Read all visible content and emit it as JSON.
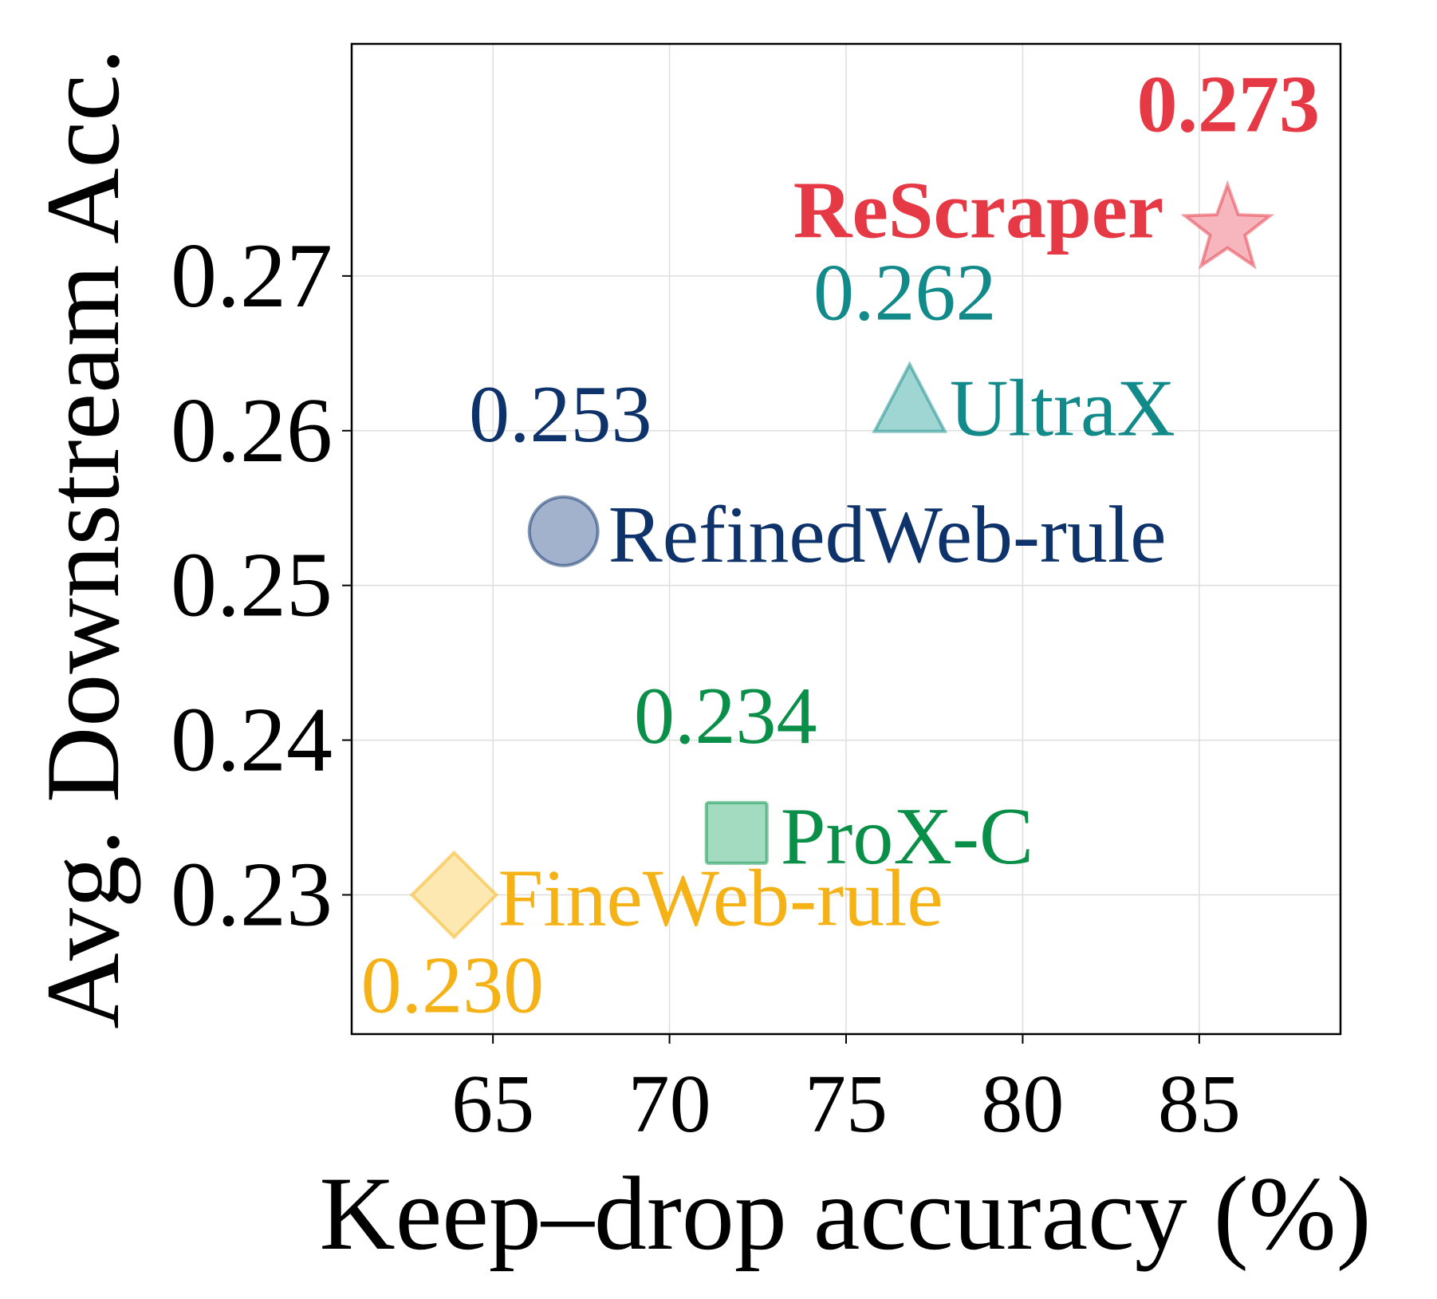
{
  "chart_data": {
    "type": "scatter",
    "title": "",
    "xlabel": "Keep–drop accuracy (%)",
    "ylabel": "Avg. Downstream Acc.",
    "xlim": [
      61.0,
      89.0
    ],
    "ylim": [
      0.221,
      0.285
    ],
    "xticks": [
      65,
      70,
      75,
      80,
      85
    ],
    "yticks": [
      0.23,
      0.24,
      0.25,
      0.26,
      0.27
    ],
    "xtick_labels": [
      "65",
      "70",
      "75",
      "80",
      "85"
    ],
    "ytick_labels": [
      "0.23",
      "0.24",
      "0.25",
      "0.26",
      "0.27"
    ],
    "grid": true,
    "points": [
      {
        "name": "ReScraper",
        "x": 85.8,
        "y": 0.273,
        "value_label": "0.273",
        "marker": "star",
        "color": "#e63946",
        "fill": "#f7b6be",
        "bold": true
      },
      {
        "name": "UltraX",
        "x": 76.8,
        "y": 0.2615,
        "value_label": "0.262",
        "marker": "triangle",
        "color": "#138a8a",
        "fill": "#9fd6d3",
        "bold": false
      },
      {
        "name": "RefinedWeb-rule",
        "x": 67.0,
        "y": 0.2535,
        "value_label": "0.253",
        "marker": "circle",
        "color": "#0e336a",
        "fill": "#a2b2cd",
        "bold": false
      },
      {
        "name": "ProX-C",
        "x": 71.9,
        "y": 0.234,
        "value_label": "0.234",
        "marker": "square",
        "color": "#0a8f48",
        "fill": "#a3dbc1",
        "bold": false
      },
      {
        "name": "FineWeb-rule",
        "x": 63.9,
        "y": 0.23,
        "value_label": "0.230",
        "marker": "diamond",
        "color": "#f5b216",
        "fill": "#fde8b2",
        "bold": false
      }
    ]
  }
}
